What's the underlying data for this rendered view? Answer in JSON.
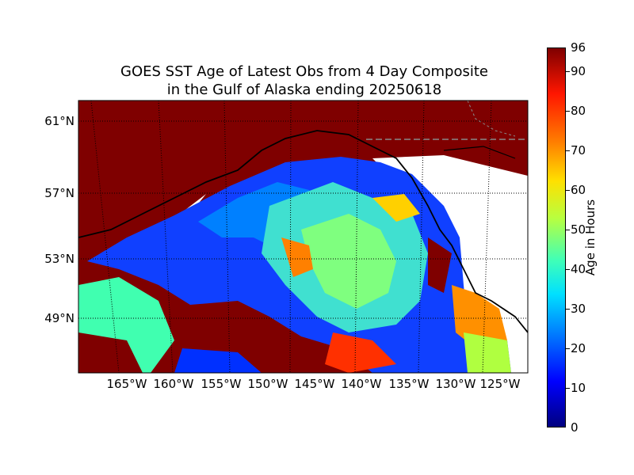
{
  "title_line1": "GOES SST Age of Latest Obs from 4 Day Composite",
  "title_line2": "in the Gulf of Alaska ending 20250618",
  "lat_labels": [
    "61°N",
    "57°N",
    "53°N",
    "49°N"
  ],
  "lon_labels": [
    "165°W",
    "160°W",
    "155°W",
    "150°W",
    "145°W",
    "140°W",
    "135°W",
    "130°W",
    "125°W"
  ],
  "colorbar": {
    "label": "Age in Hours",
    "ticks": [
      "0",
      "10",
      "20",
      "30",
      "40",
      "50",
      "60",
      "70",
      "80",
      "90",
      "96"
    ],
    "range": [
      0,
      96
    ],
    "colormap": "jet"
  },
  "colors": {
    "land_nodata": "#7f0000",
    "unobserved_land": "#ffffff",
    "coastline": "#000000",
    "grid": "#000000",
    "border_dashed": "#888888"
  }
}
